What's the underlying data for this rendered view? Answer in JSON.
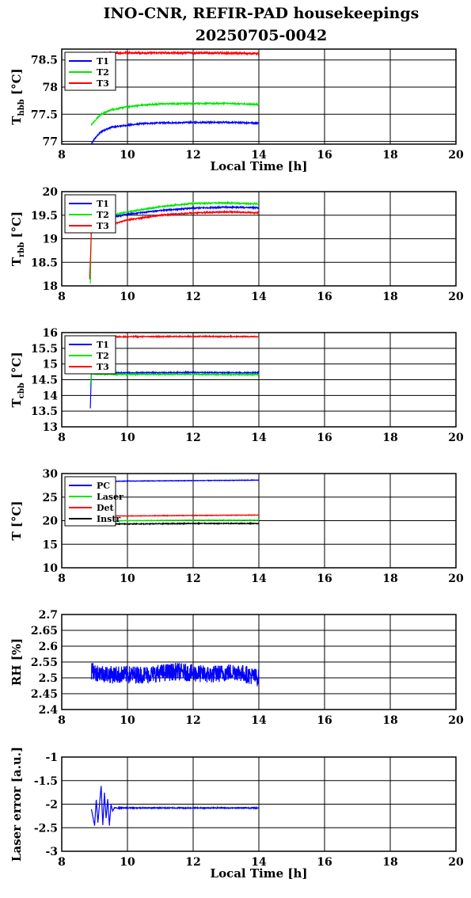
{
  "figure": {
    "title": "INO-CNR, REFIR-PAD housekeepings",
    "subtitle": "20250705-0042"
  },
  "colors": {
    "blue": "#0000ff",
    "green": "#00e600",
    "red": "#ff0000",
    "black": "#000000"
  },
  "chart_data": [
    {
      "type": "line",
      "ylabel": "T_hbb [°C]",
      "ylabel_main": "T",
      "ylabel_sub": "hbb",
      "ylabel_unit": " [°C]",
      "xlabel": "Local Time [h]",
      "xlim": [
        8,
        20
      ],
      "ylim": [
        76.95,
        78.7
      ],
      "yticks": [
        77,
        77.5,
        78,
        78.5
      ],
      "ytick_labels": [
        "77",
        "77.5",
        "78",
        "78.5"
      ],
      "xticks": [
        8,
        10,
        12,
        14,
        16,
        18,
        20
      ],
      "xtick_labels": [
        "8",
        "10",
        "12",
        "14",
        "16",
        "18",
        "20"
      ],
      "grid": true,
      "legend": "top-left",
      "series": [
        {
          "name": "T1",
          "color": "#0000ff",
          "noise": 0.012,
          "x": [
            8.9,
            9.0,
            9.2,
            9.5,
            10.0,
            10.5,
            11.0,
            12.0,
            13.0,
            14.0
          ],
          "y": [
            76.95,
            77.05,
            77.18,
            77.26,
            77.3,
            77.33,
            77.34,
            77.35,
            77.35,
            77.34
          ]
        },
        {
          "name": "T2",
          "color": "#00e600",
          "noise": 0.012,
          "x": [
            8.9,
            9.0,
            9.2,
            9.5,
            10.0,
            10.5,
            11.0,
            12.0,
            13.0,
            14.0
          ],
          "y": [
            77.3,
            77.38,
            77.5,
            77.58,
            77.64,
            77.67,
            77.69,
            77.7,
            77.7,
            77.68
          ]
        },
        {
          "name": "T3",
          "color": "#ff0000",
          "noise": 0.018,
          "x": [
            8.9,
            9.0,
            10.0,
            12.0,
            14.0
          ],
          "y": [
            78.6,
            78.62,
            78.63,
            78.63,
            78.62
          ]
        }
      ]
    },
    {
      "type": "line",
      "ylabel": "T_rbb [°C]",
      "ylabel_main": "T",
      "ylabel_sub": "rbb",
      "ylabel_unit": " [°C]",
      "xlabel": "",
      "xlim": [
        8,
        20
      ],
      "ylim": [
        18,
        20
      ],
      "yticks": [
        18,
        18.5,
        19,
        19.5,
        20
      ],
      "ytick_labels": [
        "18",
        "18.5",
        "19",
        "19.5",
        "20"
      ],
      "xticks": [
        8,
        10,
        12,
        14,
        16,
        18,
        20
      ],
      "xtick_labels": [
        "8",
        "10",
        "12",
        "14",
        "16",
        "18",
        "20"
      ],
      "grid": true,
      "legend": "top-left",
      "series": [
        {
          "name": "T1",
          "color": "#0000ff",
          "noise": 0.012,
          "x": [
            8.9,
            9.0,
            9.5,
            10.0,
            11.0,
            12.0,
            13.0,
            14.0
          ],
          "y": [
            19.3,
            19.35,
            19.45,
            19.52,
            19.6,
            19.65,
            19.67,
            19.66
          ]
        },
        {
          "name": "T2",
          "color": "#00e600",
          "noise": 0.012,
          "x": [
            8.87,
            8.9,
            9.0,
            9.5,
            10.0,
            11.0,
            12.0,
            13.0,
            14.0
          ],
          "y": [
            18.05,
            19.35,
            19.4,
            19.5,
            19.57,
            19.68,
            19.75,
            19.76,
            19.74
          ]
        },
        {
          "name": "T3",
          "color": "#ff0000",
          "noise": 0.012,
          "x": [
            8.85,
            8.88,
            8.9,
            9.0,
            9.5,
            10.0,
            11.0,
            12.0,
            13.0,
            14.0
          ],
          "y": [
            18.15,
            18.7,
            19.15,
            19.2,
            19.3,
            19.4,
            19.5,
            19.55,
            19.57,
            19.55
          ]
        }
      ]
    },
    {
      "type": "line",
      "ylabel": "T_cbb [°C]",
      "ylabel_main": "T",
      "ylabel_sub": "cbb",
      "ylabel_unit": " [°C]",
      "xlabel": "",
      "xlim": [
        8,
        20
      ],
      "ylim": [
        13,
        16
      ],
      "yticks": [
        13,
        13.5,
        14,
        14.5,
        15,
        15.5,
        16
      ],
      "ytick_labels": [
        "13",
        "13.5",
        "14",
        "14.5",
        "15",
        "15.5",
        "16"
      ],
      "xticks": [
        8,
        10,
        12,
        14,
        16,
        18,
        20
      ],
      "xtick_labels": [
        "8",
        "10",
        "12",
        "14",
        "16",
        "18",
        "20"
      ],
      "grid": true,
      "legend": "top-left",
      "series": [
        {
          "name": "T1",
          "color": "#0000ff",
          "noise": 0.015,
          "x": [
            8.87,
            8.9,
            9.0,
            10.0,
            12.0,
            14.0
          ],
          "y": [
            13.6,
            14.75,
            14.72,
            14.72,
            14.73,
            14.72
          ]
        },
        {
          "name": "T2",
          "color": "#00e600",
          "noise": 0.015,
          "x": [
            8.87,
            8.9,
            9.0,
            10.0,
            12.0,
            14.0
          ],
          "y": [
            14.3,
            14.7,
            14.68,
            14.67,
            14.67,
            14.66
          ]
        },
        {
          "name": "T3",
          "color": "#ff0000",
          "noise": 0.015,
          "x": [
            8.9,
            9.0,
            10.0,
            12.0,
            14.0
          ],
          "y": [
            15.85,
            15.86,
            15.87,
            15.88,
            15.87
          ]
        }
      ]
    },
    {
      "type": "line",
      "ylabel": "T [°C]",
      "ylabel_main": "T",
      "ylabel_sub": "",
      "ylabel_unit": " [°C]",
      "xlabel": "",
      "xlim": [
        8,
        20
      ],
      "ylim": [
        10,
        30
      ],
      "yticks": [
        10,
        15,
        20,
        25,
        30
      ],
      "ytick_labels": [
        "10",
        "15",
        "20",
        "25",
        "30"
      ],
      "xticks": [
        8,
        10,
        12,
        14,
        16,
        18,
        20
      ],
      "xtick_labels": [
        "8",
        "10",
        "12",
        "14",
        "16",
        "18",
        "20"
      ],
      "grid": true,
      "legend": "top-left",
      "series": [
        {
          "name": "PC",
          "color": "#0000ff",
          "noise": 0.05,
          "x": [
            8.9,
            10.0,
            12.0,
            14.0
          ],
          "y": [
            28.3,
            28.4,
            28.5,
            28.6
          ]
        },
        {
          "name": "Laser",
          "color": "#00e600",
          "noise": 0.05,
          "x": [
            8.9,
            10.0,
            12.0,
            14.0
          ],
          "y": [
            19.9,
            20.0,
            20.1,
            20.1
          ]
        },
        {
          "name": "Det",
          "color": "#ff0000",
          "noise": 0.05,
          "x": [
            8.9,
            10.0,
            12.0,
            14.0
          ],
          "y": [
            21.0,
            21.0,
            21.1,
            21.2
          ]
        },
        {
          "name": "Instr",
          "color": "#000000",
          "noise": 0.08,
          "x": [
            8.9,
            10.0,
            12.0,
            14.0
          ],
          "y": [
            19.3,
            19.3,
            19.4,
            19.4
          ]
        }
      ]
    },
    {
      "type": "line",
      "ylabel": "RH [%]",
      "ylabel_main": "RH [%]",
      "ylabel_sub": "",
      "ylabel_unit": "",
      "xlabel": "",
      "xlim": [
        8,
        20
      ],
      "ylim": [
        2.4,
        2.7
      ],
      "yticks": [
        2.4,
        2.45,
        2.5,
        2.55,
        2.6,
        2.65,
        2.7
      ],
      "ytick_labels": [
        "2.4",
        "2.45",
        "2.5",
        "2.55",
        "2.6",
        "2.65",
        "2.7"
      ],
      "xticks": [
        8,
        10,
        12,
        14,
        16,
        18,
        20
      ],
      "xtick_labels": [
        "8",
        "10",
        "12",
        "14",
        "16",
        "18",
        "20"
      ],
      "grid": true,
      "legend": "none",
      "series": [
        {
          "name": "",
          "color": "#0000ff",
          "noise": 0.028,
          "x": [
            8.9,
            9.5,
            10.5,
            11.5,
            12.5,
            13.3,
            14.0
          ],
          "y": [
            2.52,
            2.51,
            2.51,
            2.52,
            2.51,
            2.52,
            2.5
          ]
        }
      ]
    },
    {
      "type": "line",
      "ylabel": "Laser error [a.u.]",
      "ylabel_main": "Laser error [a.u.]",
      "ylabel_sub": "",
      "ylabel_unit": "",
      "xlabel": "Local Time [h]",
      "xlim": [
        8,
        20
      ],
      "ylim": [
        -3,
        -1
      ],
      "yticks": [
        -3,
        -2.5,
        -2,
        -1.5,
        -1
      ],
      "ytick_labels": [
        "-3",
        "-2.5",
        "-2",
        "-1.5",
        "-1"
      ],
      "xticks": [
        8,
        10,
        12,
        14,
        16,
        18,
        20
      ],
      "xtick_labels": [
        "8",
        "10",
        "12",
        "14",
        "16",
        "18",
        "20"
      ],
      "grid": true,
      "legend": "none",
      "series": [
        {
          "name": "",
          "color": "#0000ff",
          "noise": 0.01,
          "x": [
            8.9,
            9.0,
            9.05,
            9.1,
            9.15,
            9.2,
            9.25,
            9.3,
            9.35,
            9.4,
            9.45,
            9.5,
            9.55,
            9.6,
            10.0,
            12.0,
            14.0
          ],
          "y": [
            -2.1,
            -2.45,
            -1.9,
            -2.4,
            -2.0,
            -1.62,
            -2.45,
            -1.75,
            -2.3,
            -1.9,
            -2.45,
            -2.0,
            -2.15,
            -2.08,
            -2.08,
            -2.08,
            -2.08
          ]
        }
      ]
    }
  ]
}
